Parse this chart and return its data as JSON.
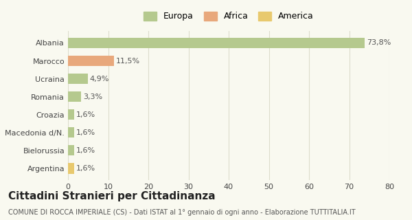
{
  "categories": [
    "Albania",
    "Marocco",
    "Ucraina",
    "Romania",
    "Croazia",
    "Macedonia d/N.",
    "Bielorussia",
    "Argentina"
  ],
  "values": [
    73.8,
    11.5,
    4.9,
    3.3,
    1.6,
    1.6,
    1.6,
    1.6
  ],
  "labels": [
    "73,8%",
    "11,5%",
    "4,9%",
    "3,3%",
    "1,6%",
    "1,6%",
    "1,6%",
    "1,6%"
  ],
  "colors": [
    "#b5c98e",
    "#e8a87c",
    "#b5c98e",
    "#b5c98e",
    "#b5c98e",
    "#b5c98e",
    "#b5c98e",
    "#e8c96e"
  ],
  "legend_labels": [
    "Europa",
    "Africa",
    "America"
  ],
  "legend_colors": [
    "#b5c98e",
    "#e8a87c",
    "#e8c96e"
  ],
  "title": "Cittadini Stranieri per Cittadinanza",
  "subtitle": "COMUNE DI ROCCA IMPERIALE (CS) - Dati ISTAT al 1° gennaio di ogni anno - Elaborazione TUTTITALIA.IT",
  "xlim": [
    0,
    80
  ],
  "xticks": [
    0,
    10,
    20,
    30,
    40,
    50,
    60,
    70,
    80
  ],
  "background_color": "#f9f9f0",
  "grid_color": "#ddddcc",
  "bar_label_fontsize": 8,
  "axis_label_fontsize": 8,
  "title_fontsize": 11,
  "subtitle_fontsize": 7,
  "legend_fontsize": 9
}
